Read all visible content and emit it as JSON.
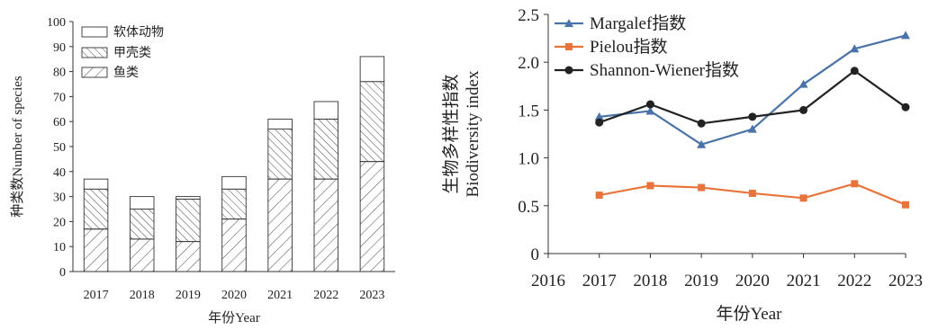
{
  "chart_data": [
    {
      "type": "bar",
      "stacked": true,
      "categories": [
        "2017",
        "2018",
        "2019",
        "2020",
        "2021",
        "2022",
        "2023"
      ],
      "series": [
        {
          "name": "鱼类",
          "values": [
            17,
            13,
            12,
            21,
            37,
            37,
            44
          ],
          "pattern": "diagonal-sparse"
        },
        {
          "name": "甲壳类",
          "values": [
            16,
            12,
            17,
            12,
            20,
            24,
            32
          ],
          "pattern": "diagonal-dense"
        },
        {
          "name": "软体动物",
          "values": [
            4,
            5,
            1,
            5,
            4,
            7,
            10
          ],
          "pattern": "none"
        }
      ],
      "ylabel": "种类数Number of species",
      "xlabel": "年份Year",
      "ylim": [
        0,
        100
      ],
      "yticks": [
        "0",
        "10",
        "20",
        "30",
        "40",
        "50",
        "60",
        "70",
        "80",
        "90",
        "100"
      ],
      "legend": {
        "placement": "top-left",
        "order": [
          "软体动物",
          "甲壳类",
          "鱼类"
        ]
      },
      "grid": false
    },
    {
      "type": "line",
      "x": [
        2017,
        2018,
        2019,
        2020,
        2021,
        2022,
        2023
      ],
      "xticks": [
        "2016",
        "2017",
        "2018",
        "2019",
        "2020",
        "2021",
        "2022",
        "2023"
      ],
      "xlim": [
        2016,
        2023
      ],
      "series": [
        {
          "name": "Margalef指数",
          "values": [
            1.43,
            1.49,
            1.14,
            1.3,
            1.77,
            2.14,
            2.28
          ],
          "color": "#4a73a8",
          "marker": "triangle"
        },
        {
          "name": "Pielou指数",
          "values": [
            0.61,
            0.71,
            0.69,
            0.63,
            0.58,
            0.73,
            0.51
          ],
          "color": "#e8743b",
          "marker": "square"
        },
        {
          "name": "Shannon-Wiener指数",
          "values": [
            1.37,
            1.56,
            1.36,
            1.43,
            1.5,
            1.91,
            1.53
          ],
          "color": "#222222",
          "marker": "circle"
        }
      ],
      "ylabel_line1": "生物多样性指数",
      "ylabel_line2": "Biodiversity index",
      "xlabel": "年份Year",
      "ylim": [
        0,
        2.5
      ],
      "yticks": [
        "0",
        "0.5",
        "1.0",
        "1.5",
        "2.0",
        "2.5"
      ],
      "legend": {
        "placement": "top-left"
      },
      "grid": false
    }
  ]
}
